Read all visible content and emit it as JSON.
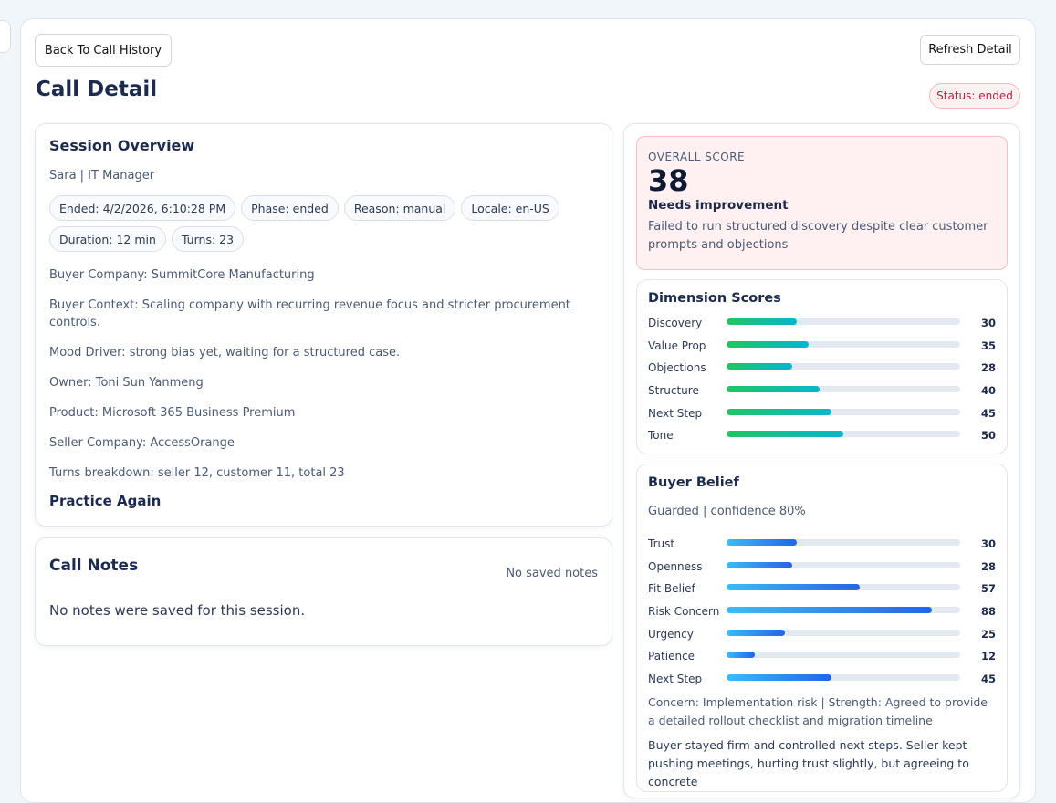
{
  "header": {
    "back_button": "Back To Call History",
    "title": "Call Detail",
    "refresh_button": "Refresh Detail",
    "status": "Status: ended"
  },
  "session": {
    "title": "Session Overview",
    "persona": "Sara | IT Manager",
    "chips": [
      "Ended: 4/2/2026, 6:10:28 PM",
      "Phase: ended",
      "Reason: manual",
      "Locale: en-US",
      "Duration: 12 min",
      "Turns: 23"
    ],
    "details": [
      "Buyer Company: SummitCore Manufacturing",
      "Buyer Context: Scaling company with recurring revenue focus and stricter procurement controls.",
      "Mood Driver: strong bias yet, waiting for a structured case.",
      "Owner: Toni Sun Yanmeng",
      "Product: Microsoft 365 Business Premium",
      "Seller Company: AccessOrange",
      "Turns breakdown: seller 12, customer 11, total 23"
    ],
    "practice": "Practice Again"
  },
  "notes": {
    "title": "Call Notes",
    "status": "No saved notes",
    "body": "No notes were saved for this session."
  },
  "score": {
    "label": "OVERALL SCORE",
    "value": 38,
    "verdict": "Needs improvement",
    "summary": "Failed to run structured discovery despite clear customer prompts and objections"
  },
  "dimensions": {
    "title": "Dimension Scores",
    "items": [
      {
        "name": "Discovery",
        "value": 30
      },
      {
        "name": "Value Prop",
        "value": 35
      },
      {
        "name": "Objections",
        "value": 28
      },
      {
        "name": "Structure",
        "value": 40
      },
      {
        "name": "Next Step",
        "value": 45
      },
      {
        "name": "Tone",
        "value": 50
      }
    ]
  },
  "belief": {
    "title": "Buyer Belief",
    "summary": "Guarded | confidence 80%",
    "items": [
      {
        "name": "Trust",
        "value": 30
      },
      {
        "name": "Openness",
        "value": 28
      },
      {
        "name": "Fit Belief",
        "value": 57
      },
      {
        "name": "Risk Concern",
        "value": 88
      },
      {
        "name": "Urgency",
        "value": 25
      },
      {
        "name": "Patience",
        "value": 12
      },
      {
        "name": "Next Step",
        "value": 45
      }
    ],
    "concern": "Concern: Implementation risk | Strength: Agreed to provide a detailed rollout checklist and migration timeline",
    "note": "Buyer stayed firm and controlled next steps. Seller kept pushing meetings, hurting trust slightly, but agreeing to concrete"
  }
}
